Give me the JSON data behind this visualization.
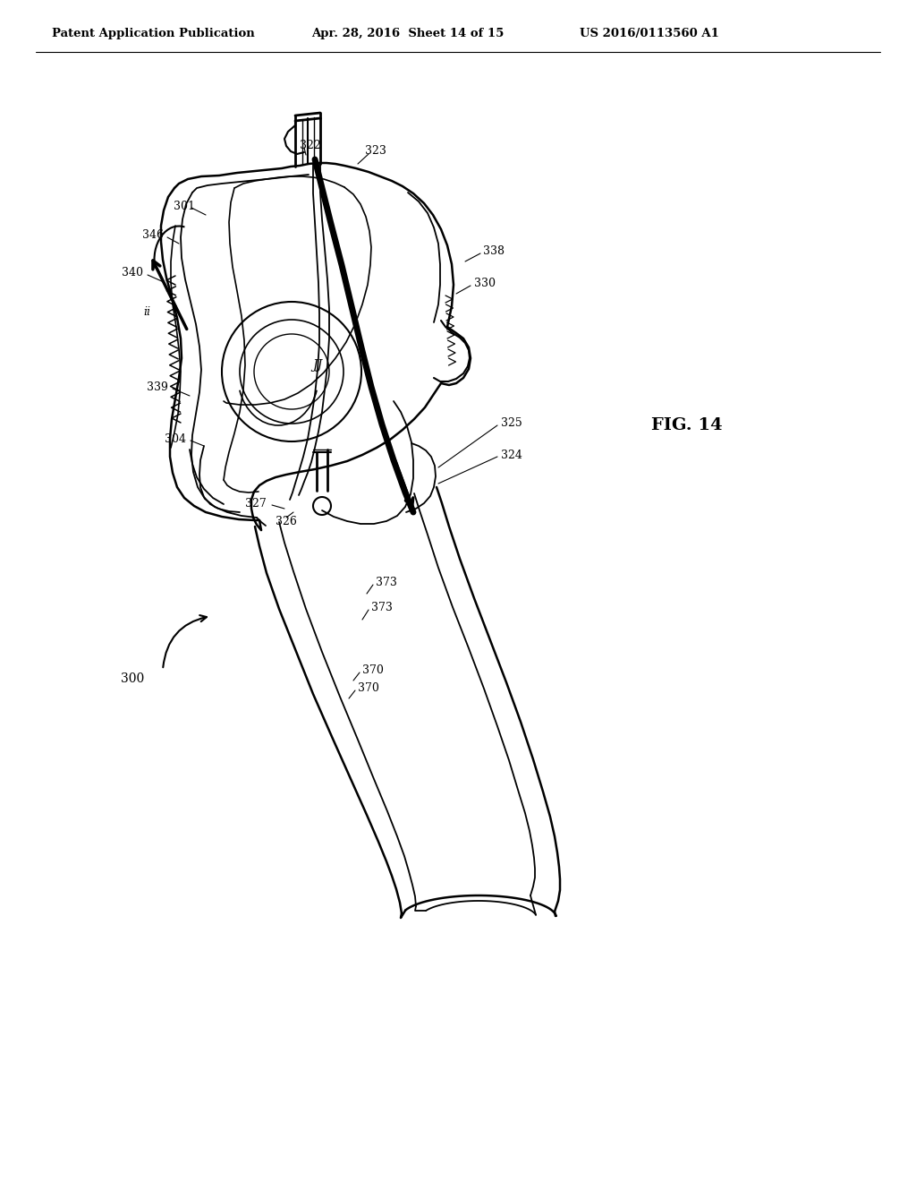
{
  "header_left": "Patent Application Publication",
  "header_mid": "Apr. 28, 2016  Sheet 14 of 15",
  "header_right": "US 2016/0113560 A1",
  "fig_label": "FIG. 14",
  "bg": "#ffffff"
}
